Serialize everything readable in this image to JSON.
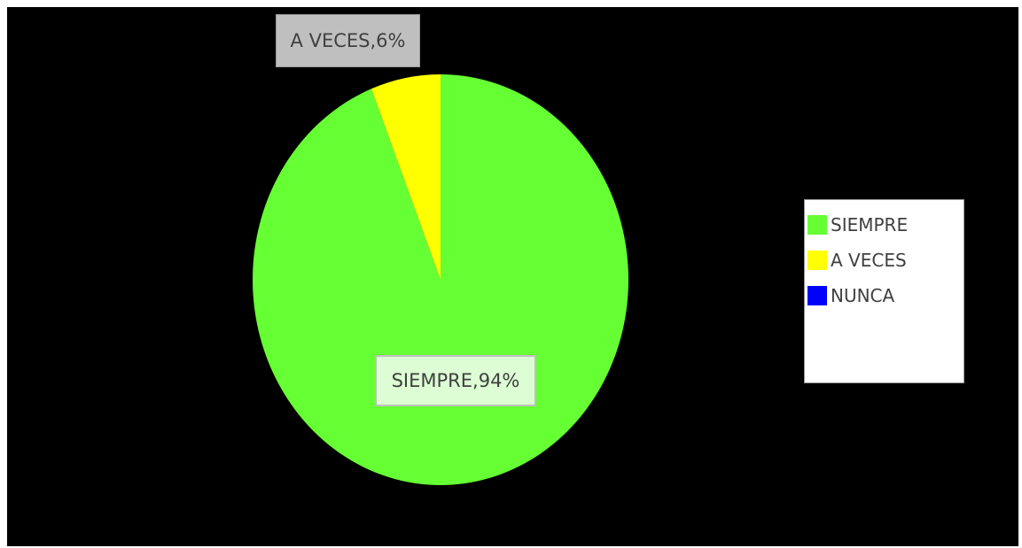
{
  "chart_data": {
    "type": "pie",
    "slices": [
      {
        "name": "SIEMPRE",
        "value": 94,
        "color": "#66ff33",
        "label": "SIEMPRE,94%"
      },
      {
        "name": "A VECES",
        "value": 6,
        "color": "#ffff00",
        "label": "A VECES,6%"
      },
      {
        "name": "NUNCA",
        "value": 0,
        "color": "#0000ff"
      }
    ],
    "legend": {
      "position": "right",
      "entries": [
        "SIEMPRE",
        "A VECES",
        "NUNCA"
      ]
    },
    "background": "#000000"
  }
}
